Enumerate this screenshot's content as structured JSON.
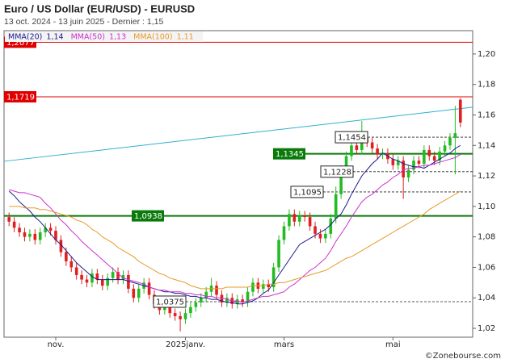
{
  "chart_data": {
    "type": "candlestick",
    "title": "Euro / US Dollar (EUR/USD) - EURUSD",
    "subtitle": "13 oct. 2024 - 13 juin 2025 - Dernier : 1,15",
    "source": "©Zonebourse.com",
    "categories": [
      null,
      null,
      null,
      null,
      null,
      null,
      null,
      null,
      null,
      "nov.",
      null,
      null,
      null,
      null,
      null,
      null,
      null,
      null,
      null,
      null,
      null,
      null,
      null,
      null,
      null,
      null,
      null,
      null,
      null,
      null,
      null,
      null,
      null,
      null,
      "2025janv.",
      null,
      null,
      null,
      null,
      null,
      null,
      null,
      null,
      null,
      null,
      null,
      null,
      null,
      null,
      null,
      null,
      null,
      null,
      "mars",
      null,
      null,
      null,
      null,
      null,
      null,
      null,
      null,
      null,
      null,
      null,
      null,
      null,
      null,
      null,
      null,
      null,
      null,
      null,
      null,
      "mai",
      null,
      null,
      null,
      null,
      null,
      null,
      null,
      null,
      null,
      null,
      null,
      null,
      null
    ],
    "open": [
      1.093,
      1.09,
      1.086,
      1.083,
      1.08,
      1.082,
      1.078,
      1.083,
      1.086,
      1.084,
      1.078,
      1.07,
      1.064,
      1.06,
      1.055,
      1.052,
      1.05,
      1.056,
      1.052,
      1.048,
      1.053,
      1.057,
      1.052,
      1.055,
      1.046,
      1.04,
      1.046,
      1.05,
      1.042,
      1.036,
      1.032,
      1.035,
      1.03,
      1.028,
      1.026,
      1.03,
      1.034,
      1.037,
      1.04,
      1.044,
      1.048,
      1.042,
      1.037,
      1.04,
      1.036,
      1.039,
      1.037,
      1.044,
      1.05,
      1.046,
      1.049,
      1.047,
      1.06,
      1.078,
      1.087,
      1.095,
      1.09,
      1.094,
      1.093,
      1.087,
      1.082,
      1.079,
      1.082,
      1.092,
      1.108,
      1.124,
      1.133,
      1.14,
      1.137,
      1.145,
      1.142,
      1.138,
      1.134,
      1.135,
      1.131,
      1.127,
      1.13,
      1.119,
      1.124,
      1.13,
      1.128,
      1.137,
      1.133,
      1.13,
      1.136,
      1.14,
      1.145,
      1.17
    ],
    "high": [
      1.096,
      1.093,
      1.089,
      1.086,
      1.085,
      1.085,
      1.086,
      1.089,
      1.089,
      1.087,
      1.081,
      1.073,
      1.067,
      1.063,
      1.058,
      1.055,
      1.059,
      1.059,
      1.055,
      1.056,
      1.06,
      1.06,
      1.058,
      1.058,
      1.049,
      1.049,
      1.053,
      1.053,
      1.045,
      1.039,
      1.038,
      1.038,
      1.033,
      1.031,
      1.033,
      1.037,
      1.04,
      1.043,
      1.047,
      1.053,
      1.051,
      1.045,
      1.043,
      1.043,
      1.042,
      1.042,
      1.047,
      1.053,
      1.053,
      1.052,
      1.052,
      1.063,
      1.081,
      1.09,
      1.098,
      1.098,
      1.097,
      1.097,
      1.096,
      1.09,
      1.085,
      1.085,
      1.095,
      1.113,
      1.127,
      1.136,
      1.145,
      1.143,
      1.156,
      1.148,
      1.145,
      1.141,
      1.138,
      1.138,
      1.134,
      1.133,
      1.133,
      1.127,
      1.133,
      1.133,
      1.14,
      1.14,
      1.136,
      1.139,
      1.143,
      1.148,
      1.166,
      1.171
    ],
    "low": [
      1.087,
      1.083,
      1.08,
      1.077,
      1.077,
      1.075,
      1.075,
      1.08,
      1.081,
      1.075,
      1.067,
      1.061,
      1.057,
      1.052,
      1.049,
      1.047,
      1.047,
      1.049,
      1.045,
      1.045,
      1.05,
      1.049,
      1.049,
      1.043,
      1.037,
      1.037,
      1.043,
      1.039,
      1.033,
      1.029,
      1.029,
      1.027,
      1.025,
      1.018,
      1.023,
      1.027,
      1.031,
      1.034,
      1.037,
      1.041,
      1.039,
      1.034,
      1.034,
      1.033,
      1.033,
      1.034,
      1.034,
      1.041,
      1.043,
      1.043,
      1.044,
      1.044,
      1.057,
      1.075,
      1.084,
      1.087,
      1.087,
      1.09,
      1.084,
      1.079,
      1.076,
      1.076,
      1.079,
      1.089,
      1.105,
      1.121,
      1.13,
      1.134,
      1.134,
      1.139,
      1.135,
      1.131,
      1.131,
      1.128,
      1.124,
      1.124,
      1.105,
      1.116,
      1.121,
      1.125,
      1.125,
      1.13,
      1.127,
      1.127,
      1.133,
      1.137,
      1.121,
      1.152
    ],
    "close": [
      1.09,
      1.086,
      1.083,
      1.08,
      1.082,
      1.078,
      1.083,
      1.086,
      1.084,
      1.078,
      1.07,
      1.064,
      1.06,
      1.055,
      1.052,
      1.05,
      1.056,
      1.052,
      1.048,
      1.053,
      1.057,
      1.052,
      1.055,
      1.046,
      1.04,
      1.046,
      1.05,
      1.042,
      1.036,
      1.032,
      1.035,
      1.03,
      1.028,
      1.026,
      1.03,
      1.034,
      1.037,
      1.04,
      1.044,
      1.048,
      1.042,
      1.037,
      1.04,
      1.036,
      1.039,
      1.037,
      1.044,
      1.05,
      1.046,
      1.049,
      1.047,
      1.06,
      1.078,
      1.087,
      1.095,
      1.09,
      1.094,
      1.093,
      1.087,
      1.082,
      1.079,
      1.082,
      1.092,
      1.108,
      1.124,
      1.133,
      1.14,
      1.137,
      1.145,
      1.142,
      1.138,
      1.134,
      1.135,
      1.131,
      1.127,
      1.13,
      1.119,
      1.124,
      1.13,
      1.128,
      1.137,
      1.133,
      1.13,
      1.136,
      1.14,
      1.145,
      1.148,
      1.155
    ],
    "up_color": "#22bb22",
    "down_color": "#e02020",
    "series": [
      {
        "name": "MMA(20)",
        "legend_label": "1,14",
        "color": "#1a1a90",
        "values": [
          1.11,
          1.107,
          1.103,
          1.1,
          1.097,
          1.093,
          1.09,
          1.086,
          1.082,
          1.078,
          1.075,
          1.071,
          1.067,
          1.063,
          1.06,
          1.057,
          1.054,
          1.052,
          1.052,
          1.052,
          1.052,
          1.052,
          1.052,
          1.051,
          1.05,
          1.049,
          1.048,
          1.047,
          1.046,
          1.045,
          1.044,
          1.044,
          1.043,
          1.043,
          1.042,
          1.041,
          1.041,
          1.04,
          1.04,
          1.039,
          1.039,
          1.038,
          1.037,
          1.037,
          1.036,
          1.036,
          1.037,
          1.038,
          1.04,
          1.043,
          1.045,
          1.05,
          1.055,
          1.06,
          1.065,
          1.07,
          1.075,
          1.077,
          1.079,
          1.081,
          1.083,
          1.085,
          1.088,
          1.092,
          1.095,
          1.101,
          1.108,
          1.114,
          1.12,
          1.124,
          1.128,
          1.131,
          1.135,
          1.133,
          1.131,
          1.13,
          1.128,
          1.127,
          1.126,
          1.126,
          1.125,
          1.127,
          1.129,
          1.131,
          1.133,
          1.135,
          1.138,
          1.14
        ]
      },
      {
        "name": "MMA(50)",
        "legend_label": "1,13",
        "color": "#d030d0",
        "values": [
          1.111,
          1.11,
          1.109,
          1.109,
          1.108,
          1.107,
          1.106,
          1.102,
          1.099,
          1.095,
          1.091,
          1.088,
          1.084,
          1.081,
          1.077,
          1.074,
          1.071,
          1.068,
          1.065,
          1.062,
          1.059,
          1.056,
          1.053,
          1.052,
          1.051,
          1.05,
          1.049,
          1.047,
          1.046,
          1.045,
          1.045,
          1.044,
          1.044,
          1.044,
          1.043,
          1.043,
          1.042,
          1.042,
          1.041,
          1.041,
          1.04,
          1.04,
          1.039,
          1.038,
          1.038,
          1.037,
          1.038,
          1.039,
          1.04,
          1.041,
          1.041,
          1.042,
          1.043,
          1.044,
          1.047,
          1.049,
          1.052,
          1.055,
          1.058,
          1.06,
          1.063,
          1.066,
          1.071,
          1.077,
          1.082,
          1.087,
          1.093,
          1.098,
          1.103,
          1.106,
          1.108,
          1.111,
          1.114,
          1.116,
          1.119,
          1.121,
          1.124,
          1.125,
          1.125,
          1.126,
          1.127,
          1.127,
          1.128,
          1.129,
          1.13,
          1.131,
          1.132,
          1.134
        ]
      },
      {
        "name": "MMA(100)",
        "legend_label": "1,11",
        "color": "#e89a28",
        "values": [
          1.1,
          1.1,
          1.1,
          1.099,
          1.099,
          1.099,
          1.098,
          1.098,
          1.097,
          1.096,
          1.095,
          1.094,
          1.093,
          1.091,
          1.09,
          1.088,
          1.085,
          1.083,
          1.08,
          1.078,
          1.076,
          1.073,
          1.071,
          1.069,
          1.067,
          1.064,
          1.062,
          1.06,
          1.058,
          1.056,
          1.055,
          1.053,
          1.052,
          1.051,
          1.05,
          1.048,
          1.047,
          1.046,
          1.046,
          1.046,
          1.046,
          1.046,
          1.047,
          1.047,
          1.047,
          1.047,
          1.047,
          1.048,
          1.048,
          1.048,
          1.049,
          1.049,
          1.05,
          1.05,
          1.051,
          1.052,
          1.053,
          1.054,
          1.055,
          1.056,
          1.057,
          1.058,
          1.06,
          1.062,
          1.064,
          1.066,
          1.067,
          1.069,
          1.071,
          1.073,
          1.075,
          1.077,
          1.079,
          1.081,
          1.083,
          1.085,
          1.087,
          1.089,
          1.091,
          1.093,
          1.095,
          1.098,
          1.1,
          1.102,
          1.104,
          1.106,
          1.108,
          1.11
        ]
      }
    ],
    "trendline": {
      "values": [
        1.1296,
        1.1651
      ],
      "color": "#30b0cc"
    },
    "levels": [
      {
        "value": 1.2077,
        "label": "1,2077",
        "color": "#e00000",
        "style": "box"
      },
      {
        "value": 1.1719,
        "label": "1,1719",
        "color": "#e00000",
        "style": "box"
      },
      {
        "value": 1.1345,
        "label": "1,1345",
        "color": "#0a7a0a",
        "style": "box"
      },
      {
        "value": 1.0938,
        "label": "1,0938",
        "color": "#0a7a0a",
        "style": "box"
      },
      {
        "value": 1.1454,
        "label": "1,1454",
        "color": "#222222",
        "style": "dashed"
      },
      {
        "value": 1.1228,
        "label": "1,1228",
        "color": "#222222",
        "style": "dashed"
      },
      {
        "value": 1.1095,
        "label": "1,1095",
        "color": "#222222",
        "style": "dashed"
      },
      {
        "value": 1.0375,
        "label": "1,0375",
        "color": "#222222",
        "style": "dashed"
      }
    ],
    "ylim": [
      1.0142,
      1.2153
    ],
    "yticks": [
      {
        "value": 1.02,
        "label": "1,02"
      },
      {
        "value": 1.04,
        "label": "1,04"
      },
      {
        "value": 1.06,
        "label": "1,06"
      },
      {
        "value": 1.08,
        "label": "1,08"
      },
      {
        "value": 1.1,
        "label": "1,10"
      },
      {
        "value": 1.12,
        "label": "1,12"
      },
      {
        "value": 1.14,
        "label": "1,14"
      },
      {
        "value": 1.16,
        "label": "1,16"
      },
      {
        "value": 1.18,
        "label": "1,18"
      },
      {
        "value": 1.2,
        "label": "1,20"
      }
    ]
  }
}
